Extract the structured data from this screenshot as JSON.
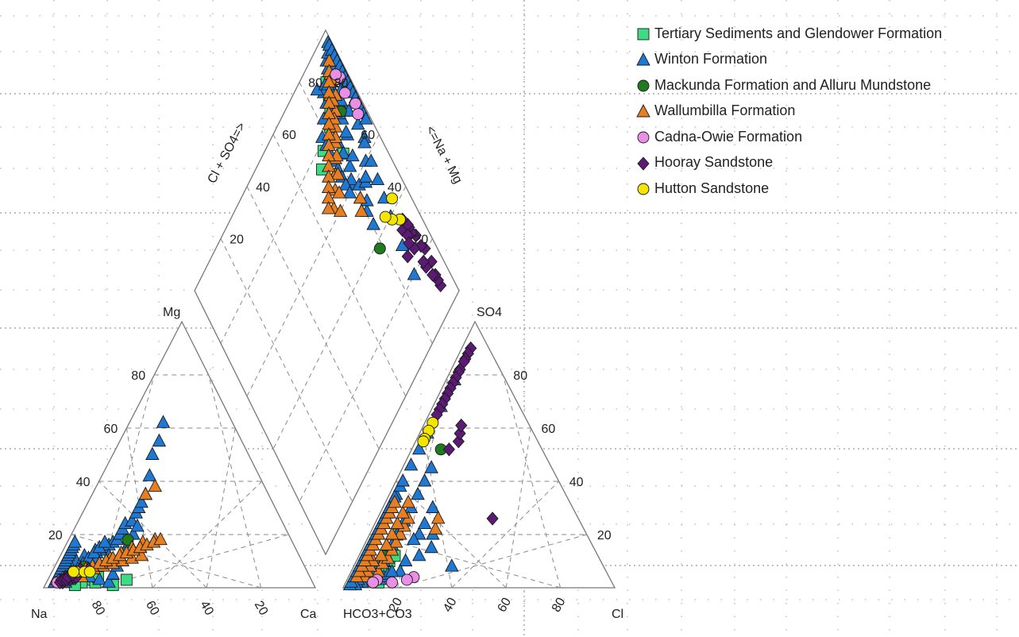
{
  "chart_data": {
    "type": "scatter",
    "subtype": "piper-trilinear",
    "grid": true,
    "legend_position": "top-right",
    "ticks": [
      "20",
      "40",
      "60",
      "80"
    ],
    "labels": {
      "cation_left": "Na",
      "cation_right": "Ca",
      "cation_top": "Mg",
      "anion_left": "HCO3+CO3",
      "anion_right": "Cl",
      "anion_top": "SO4",
      "diamond_left": "Cl + SO4=>",
      "diamond_right": "<=Na + Mg"
    },
    "series": [
      {
        "name": "Tertiary Sediments and Glendower Formation",
        "marker": "square",
        "color": "#3ddc84",
        "points": [
          [
            82,
            3,
            15,
            83,
            5,
            12
          ],
          [
            80,
            2,
            18,
            80,
            8,
            12
          ],
          [
            74,
            1,
            25,
            78,
            10,
            12
          ],
          [
            68,
            3,
            29,
            75,
            12,
            13
          ],
          [
            85,
            2,
            13,
            86,
            2,
            12
          ],
          [
            78,
            4,
            18,
            70,
            20,
            10
          ],
          [
            88,
            1,
            11,
            90,
            3,
            7
          ]
        ]
      },
      {
        "name": "Winton Formation",
        "marker": "triangle",
        "color": "#1f78d1",
        "points": [
          [
            92,
            4,
            4,
            88,
            6,
            6
          ],
          [
            90,
            5,
            5,
            85,
            8,
            7
          ],
          [
            88,
            6,
            6,
            91,
            4,
            5
          ],
          [
            86,
            7,
            7,
            82,
            10,
            8
          ],
          [
            85,
            5,
            10,
            87,
            5,
            8
          ],
          [
            83,
            8,
            9,
            80,
            12,
            8
          ],
          [
            80,
            10,
            10,
            78,
            13,
            9
          ],
          [
            78,
            11,
            11,
            84,
            8,
            8
          ],
          [
            76,
            12,
            12,
            86,
            6,
            8
          ],
          [
            74,
            13,
            13,
            79,
            11,
            10
          ],
          [
            72,
            14,
            14,
            89,
            4,
            7
          ],
          [
            70,
            15,
            15,
            83,
            9,
            8
          ],
          [
            68,
            16,
            16,
            92,
            2,
            6
          ],
          [
            66,
            17,
            17,
            80,
            10,
            10
          ],
          [
            64,
            18,
            18,
            76,
            14,
            10
          ],
          [
            62,
            20,
            18,
            74,
            16,
            10
          ],
          [
            60,
            22,
            18,
            70,
            20,
            10
          ],
          [
            58,
            24,
            18,
            65,
            25,
            10
          ],
          [
            55,
            25,
            20,
            60,
            30,
            10
          ],
          [
            52,
            28,
            20,
            55,
            35,
            10
          ],
          [
            50,
            30,
            20,
            50,
            40,
            10
          ],
          [
            48,
            32,
            20,
            45,
            45,
            10
          ],
          [
            45,
            35,
            20,
            62,
            20,
            18
          ],
          [
            40,
            42,
            18,
            58,
            24,
            18
          ],
          [
            35,
            50,
            15,
            56,
            8,
            36
          ],
          [
            30,
            55,
            15,
            66,
            12,
            22
          ],
          [
            25,
            62,
            13,
            72,
            10,
            18
          ],
          [
            89,
            3,
            8,
            76,
            6,
            18
          ],
          [
            91,
            2,
            7,
            94,
            2,
            4
          ],
          [
            87,
            4,
            9,
            88,
            9,
            3
          ],
          [
            84,
            6,
            10,
            85,
            13,
            2
          ],
          [
            82,
            7,
            11,
            82,
            16,
            2
          ],
          [
            79,
            9,
            12,
            77,
            20,
            3
          ],
          [
            77,
            10,
            13,
            73,
            24,
            3
          ],
          [
            81,
            7,
            12,
            90,
            6,
            4
          ],
          [
            93,
            3,
            4,
            93,
            3,
            4
          ],
          [
            85,
            8,
            7,
            65,
            18,
            17
          ],
          [
            80,
            9,
            11,
            60,
            15,
            25
          ],
          [
            75,
            11,
            14,
            57,
            20,
            23
          ],
          [
            70,
            12,
            18,
            52,
            30,
            18
          ],
          [
            86,
            9,
            5,
            85,
            3,
            12
          ],
          [
            83,
            10,
            7,
            83,
            4,
            13
          ],
          [
            79,
            12,
            9,
            81,
            5,
            14
          ],
          [
            74,
            14,
            12,
            79,
            6,
            15
          ],
          [
            88,
            7,
            5,
            95,
            1,
            4
          ],
          [
            86,
            6,
            8,
            92,
            5,
            3
          ],
          [
            84,
            5,
            11,
            89,
            8,
            3
          ],
          [
            81,
            4,
            15,
            86,
            11,
            3
          ],
          [
            78,
            3,
            19,
            84,
            14,
            2
          ],
          [
            75,
            2,
            23,
            81,
            17,
            2
          ],
          [
            72,
            5,
            23,
            78,
            20,
            2
          ],
          [
            69,
            8,
            23,
            75,
            23,
            2
          ],
          [
            66,
            11,
            23,
            72,
            26,
            2
          ],
          [
            63,
            14,
            23,
            69,
            29,
            2
          ],
          [
            60,
            17,
            23,
            66,
            32,
            2
          ],
          [
            57,
            20,
            23,
            63,
            35,
            2
          ],
          [
            54,
            23,
            23,
            60,
            38,
            2
          ],
          [
            90,
            3,
            7,
            70,
            28,
            2
          ],
          [
            87,
            5,
            8,
            64,
            34,
            2
          ],
          [
            84,
            7,
            9,
            58,
            40,
            2
          ],
          [
            81,
            9,
            10,
            52,
            46,
            2
          ],
          [
            78,
            11,
            11,
            46,
            52,
            2
          ],
          [
            75,
            13,
            12,
            40,
            58,
            2
          ],
          [
            72,
            15,
            13,
            30,
            68,
            2
          ],
          [
            69,
            17,
            14,
            20,
            78,
            2
          ],
          [
            95,
            2,
            3,
            97,
            1,
            2
          ],
          [
            94,
            3,
            3,
            96,
            2,
            2
          ],
          [
            93,
            4,
            3,
            94,
            4,
            2
          ],
          [
            92,
            5,
            3,
            92,
            6,
            2
          ],
          [
            91,
            6,
            3,
            90,
            8,
            2
          ],
          [
            90,
            7,
            3,
            88,
            10,
            2
          ],
          [
            89,
            8,
            3,
            86,
            12,
            2
          ],
          [
            88,
            9,
            3,
            84,
            14,
            2
          ],
          [
            87,
            10,
            3,
            82,
            16,
            2
          ],
          [
            86,
            11,
            3,
            80,
            18,
            2
          ],
          [
            85,
            12,
            3,
            78,
            20,
            2
          ],
          [
            84,
            13,
            3,
            76,
            22,
            2
          ],
          [
            83,
            14,
            3,
            74,
            24,
            2
          ],
          [
            82,
            15,
            3,
            72,
            26,
            2
          ],
          [
            81,
            16,
            3,
            70,
            28,
            2
          ],
          [
            80,
            17,
            3,
            68,
            30,
            2
          ]
        ]
      },
      {
        "name": "Mackunda Formation and Alluru Mundstone",
        "marker": "circle",
        "color": "#1e7b1e",
        "points": [
          [
            81,
            8,
            11,
            79,
            12,
            9
          ],
          [
            60,
            18,
            22,
            38,
            52,
            10
          ]
        ]
      },
      {
        "name": "Wallumbilla Formation",
        "marker": "triangle",
        "color": "#e67e22",
        "points": [
          [
            85,
            5,
            10,
            84,
            6,
            10
          ],
          [
            80,
            7,
            13,
            81,
            9,
            10
          ],
          [
            75,
            9,
            16,
            78,
            11,
            11
          ],
          [
            70,
            11,
            19,
            75,
            14,
            11
          ],
          [
            65,
            13,
            22,
            72,
            17,
            11
          ],
          [
            60,
            15,
            25,
            69,
            20,
            11
          ],
          [
            55,
            17,
            28,
            66,
            23,
            11
          ],
          [
            50,
            18,
            32,
            63,
            26,
            11
          ],
          [
            45,
            35,
            20,
            55,
            22,
            23
          ],
          [
            40,
            38,
            22,
            52,
            26,
            22
          ],
          [
            88,
            4,
            8,
            90,
            4,
            6
          ],
          [
            86,
            6,
            8,
            88,
            6,
            6
          ],
          [
            84,
            4,
            12,
            86,
            8,
            6
          ],
          [
            82,
            6,
            12,
            84,
            10,
            6
          ],
          [
            78,
            7,
            15,
            80,
            12,
            8
          ],
          [
            74,
            8,
            18,
            76,
            16,
            8
          ],
          [
            70,
            9,
            21,
            72,
            20,
            8
          ],
          [
            66,
            10,
            24,
            68,
            24,
            8
          ],
          [
            62,
            11,
            27,
            64,
            28,
            8
          ],
          [
            58,
            12,
            30,
            60,
            32,
            8
          ],
          [
            90,
            4,
            6,
            93,
            4,
            3
          ],
          [
            87,
            5,
            8,
            91,
            6,
            3
          ],
          [
            84,
            6,
            10,
            89,
            8,
            3
          ],
          [
            81,
            7,
            12,
            87,
            10,
            3
          ],
          [
            78,
            8,
            14,
            85,
            12,
            3
          ],
          [
            75,
            9,
            16,
            83,
            14,
            3
          ],
          [
            72,
            10,
            18,
            81,
            16,
            3
          ],
          [
            69,
            11,
            20,
            79,
            18,
            3
          ],
          [
            66,
            12,
            22,
            77,
            20,
            3
          ],
          [
            63,
            13,
            24,
            75,
            22,
            3
          ],
          [
            60,
            14,
            26,
            73,
            24,
            3
          ],
          [
            57,
            15,
            28,
            71,
            26,
            3
          ],
          [
            54,
            16,
            30,
            69,
            28,
            3
          ],
          [
            51,
            17,
            32,
            67,
            30,
            3
          ],
          [
            48,
            18,
            34,
            65,
            32,
            3
          ]
        ]
      },
      {
        "name": "Cadna-Owie Formation",
        "marker": "circle",
        "color": "#e98fe6",
        "points": [
          [
            93,
            2,
            5,
            86,
            3,
            11
          ],
          [
            91,
            3,
            6,
            88,
            2,
            10
          ],
          [
            90,
            4,
            6,
            81,
            2,
            17
          ],
          [
            92,
            3,
            5,
            72,
            4,
            24
          ],
          [
            94,
            2,
            4,
            75,
            3,
            22
          ]
        ]
      },
      {
        "name": "Hooray Sandstone",
        "marker": "diamond",
        "color": "#5b1a73",
        "points": [
          [
            92,
            2,
            6,
            8,
            90,
            2
          ],
          [
            91,
            3,
            6,
            10,
            88,
            2
          ],
          [
            92,
            2,
            6,
            12,
            86,
            2
          ],
          [
            90,
            3,
            7,
            13,
            85,
            2
          ],
          [
            93,
            2,
            5,
            16,
            82,
            2
          ],
          [
            88,
            4,
            8,
            17,
            81,
            2
          ],
          [
            89,
            3,
            8,
            19,
            79,
            2
          ],
          [
            92,
            3,
            5,
            21,
            77,
            2
          ],
          [
            90,
            4,
            6,
            23,
            75,
            2
          ],
          [
            87,
            4,
            9,
            25,
            73,
            2
          ],
          [
            91,
            3,
            6,
            27,
            71,
            2
          ],
          [
            88,
            5,
            7,
            29,
            69,
            2
          ],
          [
            90,
            3,
            7,
            31,
            67,
            2
          ],
          [
            86,
            4,
            10,
            33,
            65,
            2
          ],
          [
            89,
            4,
            7,
            32,
            26,
            42
          ],
          [
            87,
            5,
            8,
            35,
            52,
            13
          ],
          [
            85,
            6,
            9,
            30,
            55,
            15
          ],
          [
            83,
            7,
            10,
            28,
            58,
            14
          ],
          [
            80,
            7,
            13,
            26,
            61,
            13
          ]
        ]
      },
      {
        "name": "Hutton Sandstone",
        "marker": "circle",
        "color": "#f2e600",
        "points": [
          [
            85,
            6,
            9,
            36,
            62,
            2
          ],
          [
            82,
            6,
            12,
            39,
            59,
            2
          ],
          [
            80,
            6,
            14,
            42,
            56,
            2
          ],
          [
            86,
            6,
            8,
            43,
            55,
            2
          ]
        ]
      }
    ]
  }
}
